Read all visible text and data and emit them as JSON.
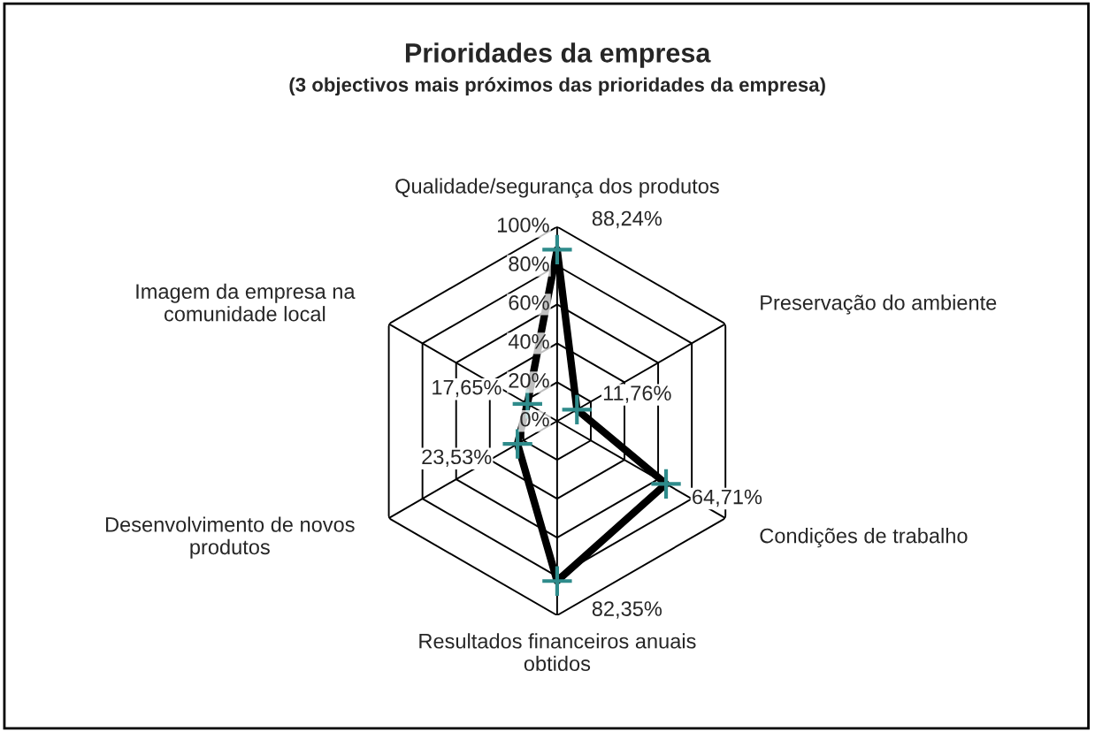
{
  "chart_data": {
    "type": "radar",
    "title": "Prioridades da empresa",
    "subtitle": "(3 objectivos mais próximos das prioridades da empresa)",
    "categories": [
      "Qualidade/segurança dos produtos",
      "Preservação do ambiente",
      "Condições de trabalho",
      "Resultados financeiros anuais\nobtidos",
      "Desenvolvimento de novos\nprodutos",
      "Imagem da empresa na\ncomunidade local"
    ],
    "series": [
      {
        "color": "#000000",
        "values": [
          88.24,
          11.76,
          64.71,
          82.35,
          23.53,
          17.65
        ],
        "value_labels": [
          "88,24%",
          "11,76%",
          "64,71%",
          "82,35%",
          "23,53%",
          "17,65%"
        ]
      }
    ],
    "ylim": [
      0,
      100
    ],
    "yticks": [
      {
        "value": 0,
        "label": "0%"
      },
      {
        "value": 20,
        "label": "20%"
      },
      {
        "value": 40,
        "label": "40%"
      },
      {
        "value": 60,
        "label": "60%"
      },
      {
        "value": 80,
        "label": "80%"
      },
      {
        "value": 100,
        "label": "100%"
      }
    ],
    "grid": true,
    "marker": "cross",
    "legend": false
  }
}
